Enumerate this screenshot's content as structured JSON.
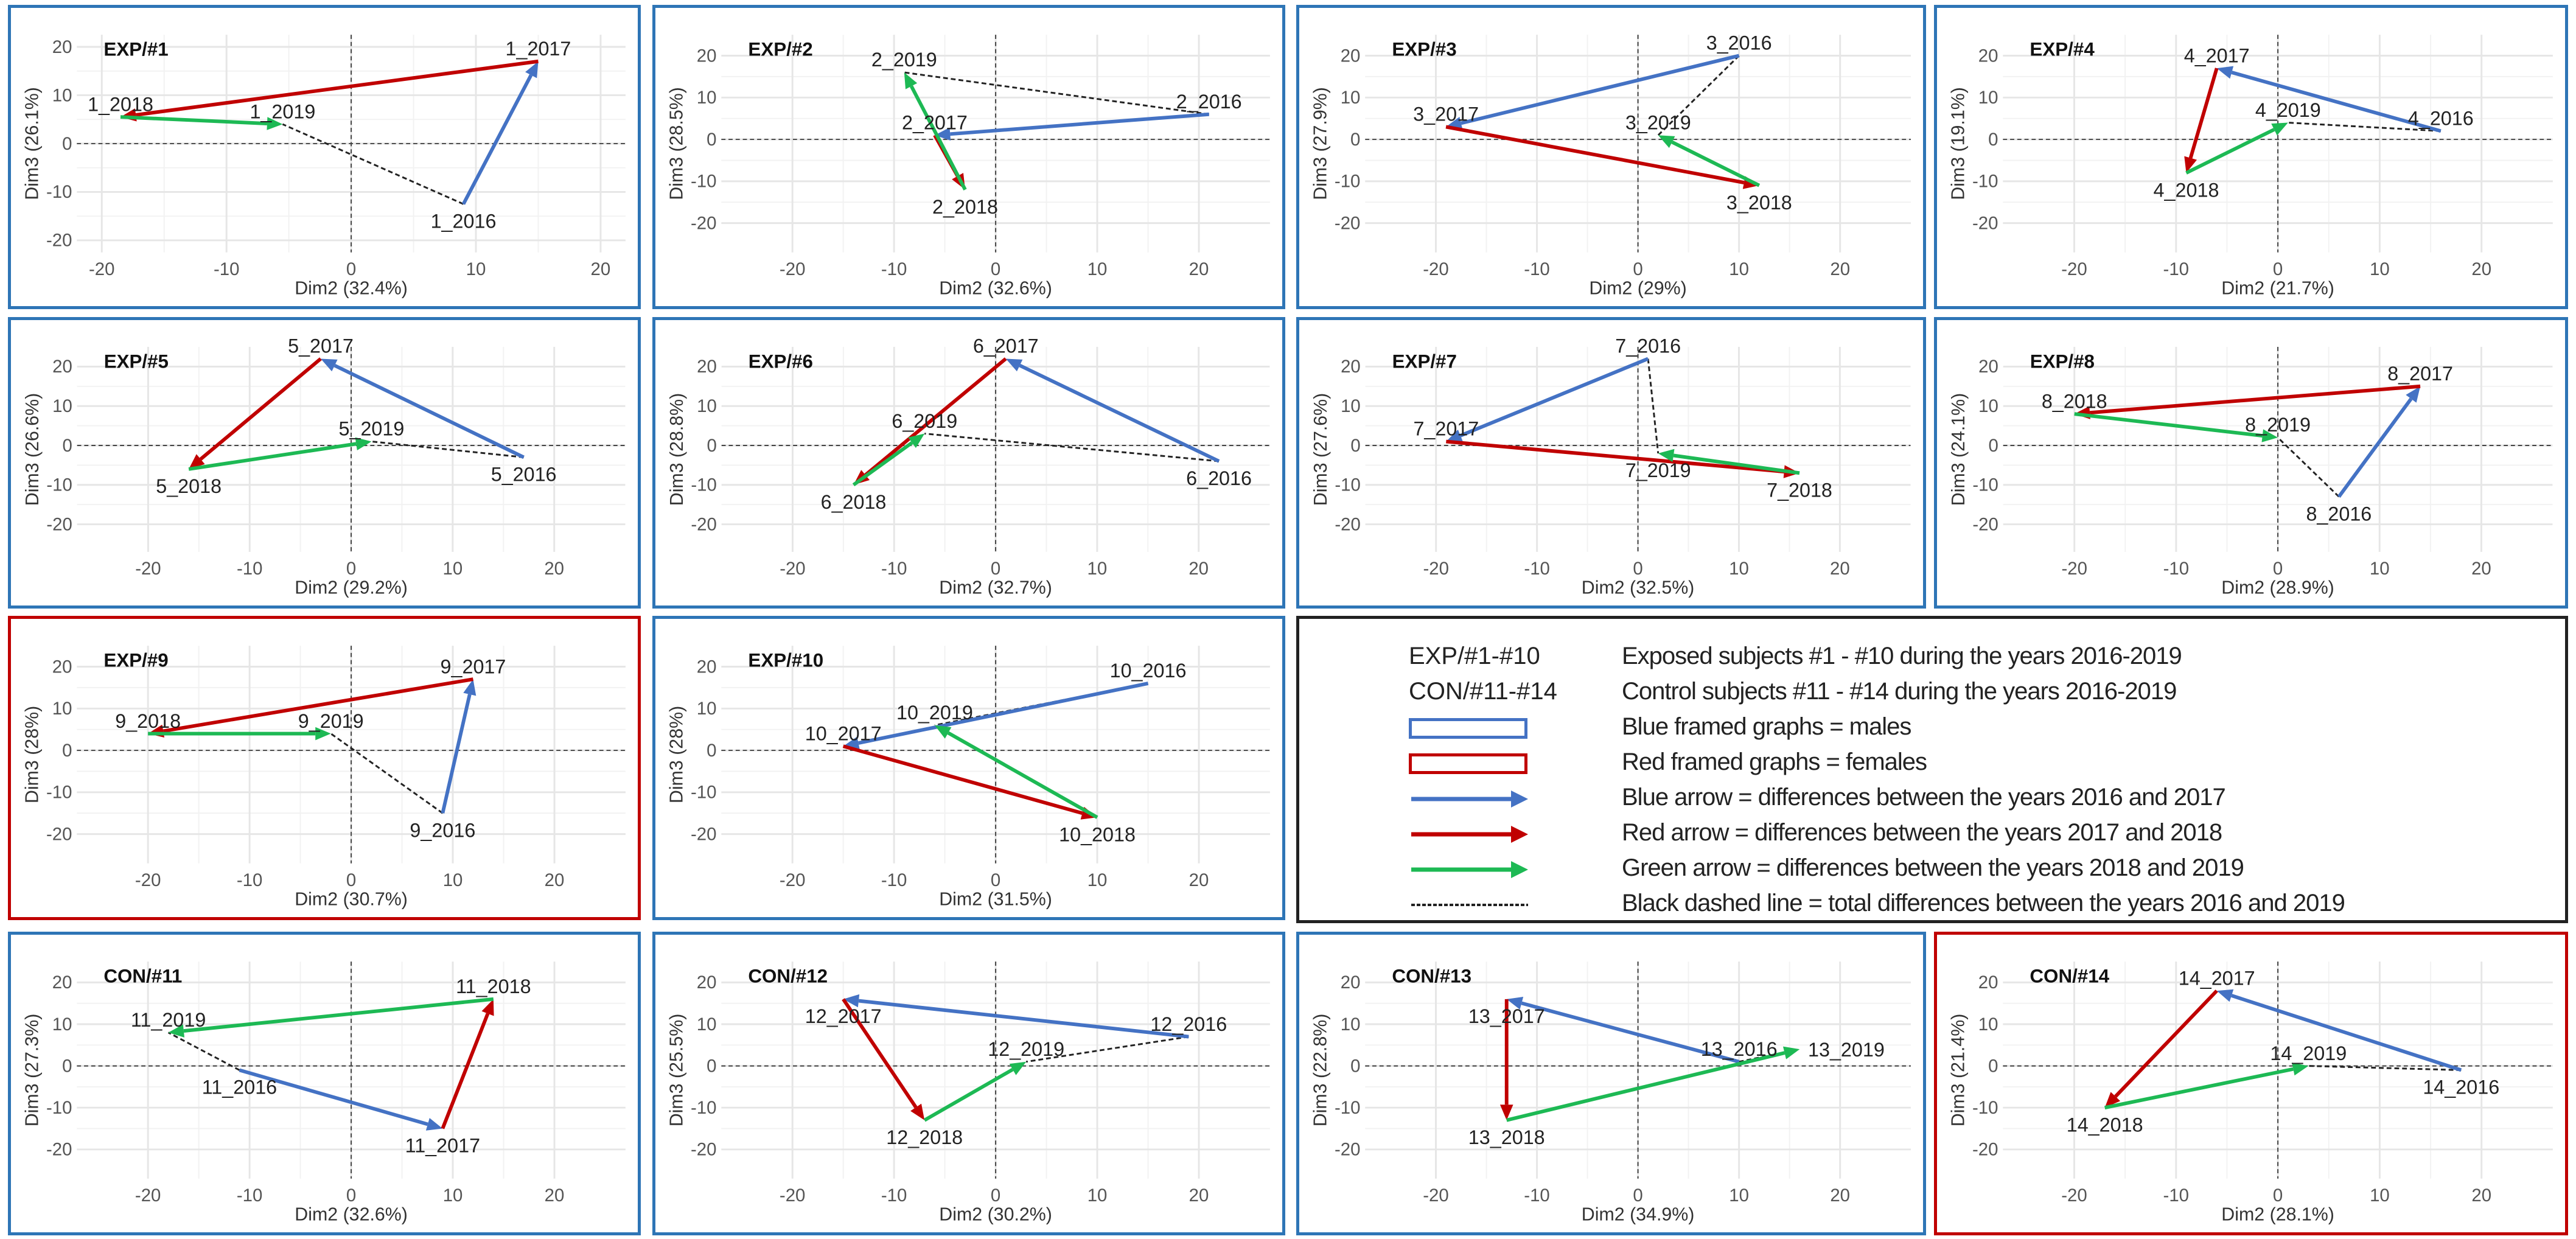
{
  "colors": {
    "male_frame": "#2e75b6",
    "female_frame": "#c00000",
    "arrow_2016_2017": "#4472c4",
    "arrow_2017_2018": "#c00000",
    "arrow_2018_2019": "#1db954",
    "total_line": "#222222"
  },
  "chart_data": [
    {
      "type": "scatter",
      "title": "EXP/#1",
      "frame": "blue",
      "xlabel": "Dim2 (32.4%)",
      "ylabel": "Dim3 (26.1%)",
      "xlim": [
        -22,
        22
      ],
      "ylim": [
        -22.5,
        22.5
      ],
      "xticks": [
        -20,
        -10,
        0,
        10,
        20
      ],
      "yticks": [
        20,
        10,
        0,
        -10,
        -20
      ],
      "points": [
        {
          "label": "1_2016",
          "x": 9,
          "y": -12.5
        },
        {
          "label": "1_2017",
          "x": 15,
          "y": 17
        },
        {
          "label": "1_2018",
          "x": -18.5,
          "y": 5.5
        },
        {
          "label": "1_2019",
          "x": -5.5,
          "y": 4
        }
      ]
    },
    {
      "type": "scatter",
      "title": "EXP/#2",
      "frame": "blue",
      "xlabel": "Dim2 (32.6%)",
      "ylabel": "Dim3 (28.5%)",
      "xlim": [
        -27,
        27
      ],
      "ylim": [
        -27,
        25
      ],
      "xticks": [
        -20,
        -10,
        0,
        10,
        20
      ],
      "yticks": [
        20,
        10,
        0,
        -10,
        -20
      ],
      "points": [
        {
          "label": "2_2016",
          "x": 21,
          "y": 6
        },
        {
          "label": "2_2017",
          "x": -6,
          "y": 1
        },
        {
          "label": "2_2018",
          "x": -3,
          "y": -12
        },
        {
          "label": "2_2019",
          "x": -9,
          "y": 16
        }
      ]
    },
    {
      "type": "scatter",
      "title": "EXP/#3",
      "frame": "blue",
      "xlabel": "Dim2 (29%)",
      "ylabel": "Dim3 (27.9%)",
      "xlim": [
        -27,
        27
      ],
      "ylim": [
        -27,
        25
      ],
      "xticks": [
        -20,
        -10,
        0,
        10,
        20
      ],
      "yticks": [
        20,
        10,
        0,
        -10,
        -20
      ],
      "points": [
        {
          "label": "3_2016",
          "x": 10,
          "y": 20
        },
        {
          "label": "3_2017",
          "x": -19,
          "y": 3
        },
        {
          "label": "3_2018",
          "x": 12,
          "y": -11
        },
        {
          "label": "3_2019",
          "x": 2,
          "y": 1
        }
      ]
    },
    {
      "type": "scatter",
      "title": "EXP/#4",
      "frame": "blue",
      "xlabel": "Dim2 (21.7%)",
      "ylabel": "Dim3 (19.1%)",
      "xlim": [
        -27,
        27
      ],
      "ylim": [
        -27,
        25
      ],
      "xticks": [
        -20,
        -10,
        0,
        10,
        20
      ],
      "yticks": [
        20,
        10,
        0,
        -10,
        -20
      ],
      "points": [
        {
          "label": "4_2016",
          "x": 16,
          "y": 2
        },
        {
          "label": "4_2017",
          "x": -6,
          "y": 17
        },
        {
          "label": "4_2018",
          "x": -9,
          "y": -8
        },
        {
          "label": "4_2019",
          "x": 1,
          "y": 4
        }
      ]
    },
    {
      "type": "scatter",
      "title": "EXP/#5",
      "frame": "blue",
      "xlabel": "Dim2 (29.2%)",
      "ylabel": "Dim3 (26.6%)",
      "xlim": [
        -27,
        27
      ],
      "ylim": [
        -27,
        25
      ],
      "xticks": [
        -20,
        -10,
        0,
        10,
        20
      ],
      "yticks": [
        20,
        10,
        0,
        -10,
        -20
      ],
      "points": [
        {
          "label": "5_2016",
          "x": 17,
          "y": -3
        },
        {
          "label": "5_2017",
          "x": -3,
          "y": 22
        },
        {
          "label": "5_2018",
          "x": -16,
          "y": -6
        },
        {
          "label": "5_2019",
          "x": 2,
          "y": 1
        }
      ]
    },
    {
      "type": "scatter",
      "title": "EXP/#6",
      "frame": "blue",
      "xlabel": "Dim2 (32.7%)",
      "ylabel": "Dim3 (28.8%)",
      "xlim": [
        -27,
        27
      ],
      "ylim": [
        -27,
        25
      ],
      "xticks": [
        -20,
        -10,
        0,
        10,
        20
      ],
      "yticks": [
        20,
        10,
        0,
        -10,
        -20
      ],
      "points": [
        {
          "label": "6_2016",
          "x": 22,
          "y": -4
        },
        {
          "label": "6_2017",
          "x": 1,
          "y": 22
        },
        {
          "label": "6_2018",
          "x": -14,
          "y": -10
        },
        {
          "label": "6_2019",
          "x": -7,
          "y": 3
        }
      ]
    },
    {
      "type": "scatter",
      "title": "EXP/#7",
      "frame": "blue",
      "xlabel": "Dim2 (32.5%)",
      "ylabel": "Dim3 (27.6%)",
      "xlim": [
        -27,
        27
      ],
      "ylim": [
        -27,
        25
      ],
      "xticks": [
        -20,
        -10,
        0,
        10,
        20
      ],
      "yticks": [
        20,
        10,
        0,
        -10,
        -20
      ],
      "points": [
        {
          "label": "7_2016",
          "x": 1,
          "y": 22
        },
        {
          "label": "7_2017",
          "x": -19,
          "y": 1
        },
        {
          "label": "7_2018",
          "x": 16,
          "y": -7
        },
        {
          "label": "7_2019",
          "x": 2,
          "y": -2
        }
      ]
    },
    {
      "type": "scatter",
      "title": "EXP/#8",
      "frame": "blue",
      "xlabel": "Dim2 (28.9%)",
      "ylabel": "Dim3 (24.1%)",
      "xlim": [
        -27,
        27
      ],
      "ylim": [
        -27,
        25
      ],
      "xticks": [
        -20,
        -10,
        0,
        10,
        20
      ],
      "yticks": [
        20,
        10,
        0,
        -10,
        -20
      ],
      "points": [
        {
          "label": "8_2016",
          "x": 6,
          "y": -13
        },
        {
          "label": "8_2017",
          "x": 14,
          "y": 15
        },
        {
          "label": "8_2018",
          "x": -20,
          "y": 8
        },
        {
          "label": "8_2019",
          "x": 0,
          "y": 2
        }
      ]
    },
    {
      "type": "scatter",
      "title": "EXP/#9",
      "frame": "red",
      "xlabel": "Dim2 (30.7%)",
      "ylabel": "Dim3 (28%)",
      "xlim": [
        -27,
        27
      ],
      "ylim": [
        -27,
        25
      ],
      "xticks": [
        -20,
        -10,
        0,
        10,
        20
      ],
      "yticks": [
        20,
        10,
        0,
        -10,
        -20
      ],
      "points": [
        {
          "label": "9_2016",
          "x": 9,
          "y": -15
        },
        {
          "label": "9_2017",
          "x": 12,
          "y": 17
        },
        {
          "label": "9_2018",
          "x": -20,
          "y": 4
        },
        {
          "label": "9_2019",
          "x": -2,
          "y": 4
        }
      ]
    },
    {
      "type": "scatter",
      "title": "EXP/#10",
      "frame": "blue",
      "xlabel": "Dim2 (31.5%)",
      "ylabel": "Dim3 (28%)",
      "xlim": [
        -27,
        27
      ],
      "ylim": [
        -27,
        25
      ],
      "xticks": [
        -20,
        -10,
        0,
        10,
        20
      ],
      "yticks": [
        20,
        10,
        0,
        -10,
        -20
      ],
      "points": [
        {
          "label": "10_2016",
          "x": 15,
          "y": 16
        },
        {
          "label": "10_2017",
          "x": -15,
          "y": 1
        },
        {
          "label": "10_2018",
          "x": 10,
          "y": -16
        },
        {
          "label": "10_2019",
          "x": -6,
          "y": 6
        }
      ]
    },
    {
      "type": "scatter",
      "title": "CON/#11",
      "frame": "blue",
      "xlabel": "Dim2 (32.6%)",
      "ylabel": "Dim3 (27.3%)",
      "xlim": [
        -27,
        27
      ],
      "ylim": [
        -27,
        25
      ],
      "xticks": [
        -20,
        -10,
        0,
        10,
        20
      ],
      "yticks": [
        20,
        10,
        0,
        -10,
        -20
      ],
      "points": [
        {
          "label": "11_2016",
          "x": -11,
          "y": -1
        },
        {
          "label": "11_2017",
          "x": 9,
          "y": -15
        },
        {
          "label": "11_2018",
          "x": 14,
          "y": 16
        },
        {
          "label": "11_2019",
          "x": -18,
          "y": 8
        }
      ]
    },
    {
      "type": "scatter",
      "title": "CON/#12",
      "frame": "blue",
      "xlabel": "Dim2 (30.2%)",
      "ylabel": "Dim3 (25.5%)",
      "xlim": [
        -27,
        27
      ],
      "ylim": [
        -27,
        25
      ],
      "xticks": [
        -20,
        -10,
        0,
        10,
        20
      ],
      "yticks": [
        20,
        10,
        0,
        -10,
        -20
      ],
      "points": [
        {
          "label": "12_2016",
          "x": 19,
          "y": 7
        },
        {
          "label": "12_2017",
          "x": -15,
          "y": 16
        },
        {
          "label": "12_2018",
          "x": -7,
          "y": -13
        },
        {
          "label": "12_2019",
          "x": 3,
          "y": 1
        }
      ]
    },
    {
      "type": "scatter",
      "title": "CON/#13",
      "frame": "blue",
      "xlabel": "Dim2 (34.9%)",
      "ylabel": "Dim3 (22.8%)",
      "xlim": [
        -27,
        27
      ],
      "ylim": [
        -27,
        25
      ],
      "xticks": [
        -20,
        -10,
        0,
        10,
        20
      ],
      "yticks": [
        20,
        10,
        0,
        -10,
        -20
      ],
      "points": [
        {
          "label": "13_2016",
          "x": 10,
          "y": 1
        },
        {
          "label": "13_2017",
          "x": -13,
          "y": 16
        },
        {
          "label": "13_2018",
          "x": -13,
          "y": -13
        },
        {
          "label": "13_2019",
          "x": 16,
          "y": 4
        }
      ]
    },
    {
      "type": "scatter",
      "title": "CON/#14",
      "frame": "red",
      "xlabel": "Dim2 (28.1%)",
      "ylabel": "Dim3 (21.4%)",
      "xlim": [
        -27,
        27
      ],
      "ylim": [
        -27,
        25
      ],
      "xticks": [
        -20,
        -10,
        0,
        10,
        20
      ],
      "yticks": [
        20,
        10,
        0,
        -10,
        -20
      ],
      "points": [
        {
          "label": "14_2016",
          "x": 18,
          "y": -1
        },
        {
          "label": "14_2017",
          "x": -6,
          "y": 18
        },
        {
          "label": "14_2018",
          "x": -17,
          "y": -10
        },
        {
          "label": "14_2019",
          "x": 3,
          "y": 0
        }
      ]
    }
  ],
  "legend": {
    "rows": [
      {
        "key": "EXP/#1-#10",
        "desc": "Exposed subjects #1 - #10 during the years 2016-2019"
      },
      {
        "key": "CON/#11-#14",
        "desc": "Control subjects #11 - #14 during the years 2016-2019"
      },
      {
        "key_symbol": "blue-frame",
        "desc": "Blue framed graphs = males"
      },
      {
        "key_symbol": "red-frame",
        "desc": "Red framed graphs = females"
      },
      {
        "key_symbol": "blue-arrow",
        "desc": "Blue arrow = differences between the years 2016 and 2017"
      },
      {
        "key_symbol": "red-arrow",
        "desc": "Red arrow = differences between the years 2017 and 2018"
      },
      {
        "key_symbol": "green-arrow",
        "desc": "Green arrow = differences between the years 2018 and 2019"
      },
      {
        "key_symbol": "black-dashed-line",
        "desc": "Black dashed line = total differences between the years 2016 and 2019"
      }
    ]
  }
}
